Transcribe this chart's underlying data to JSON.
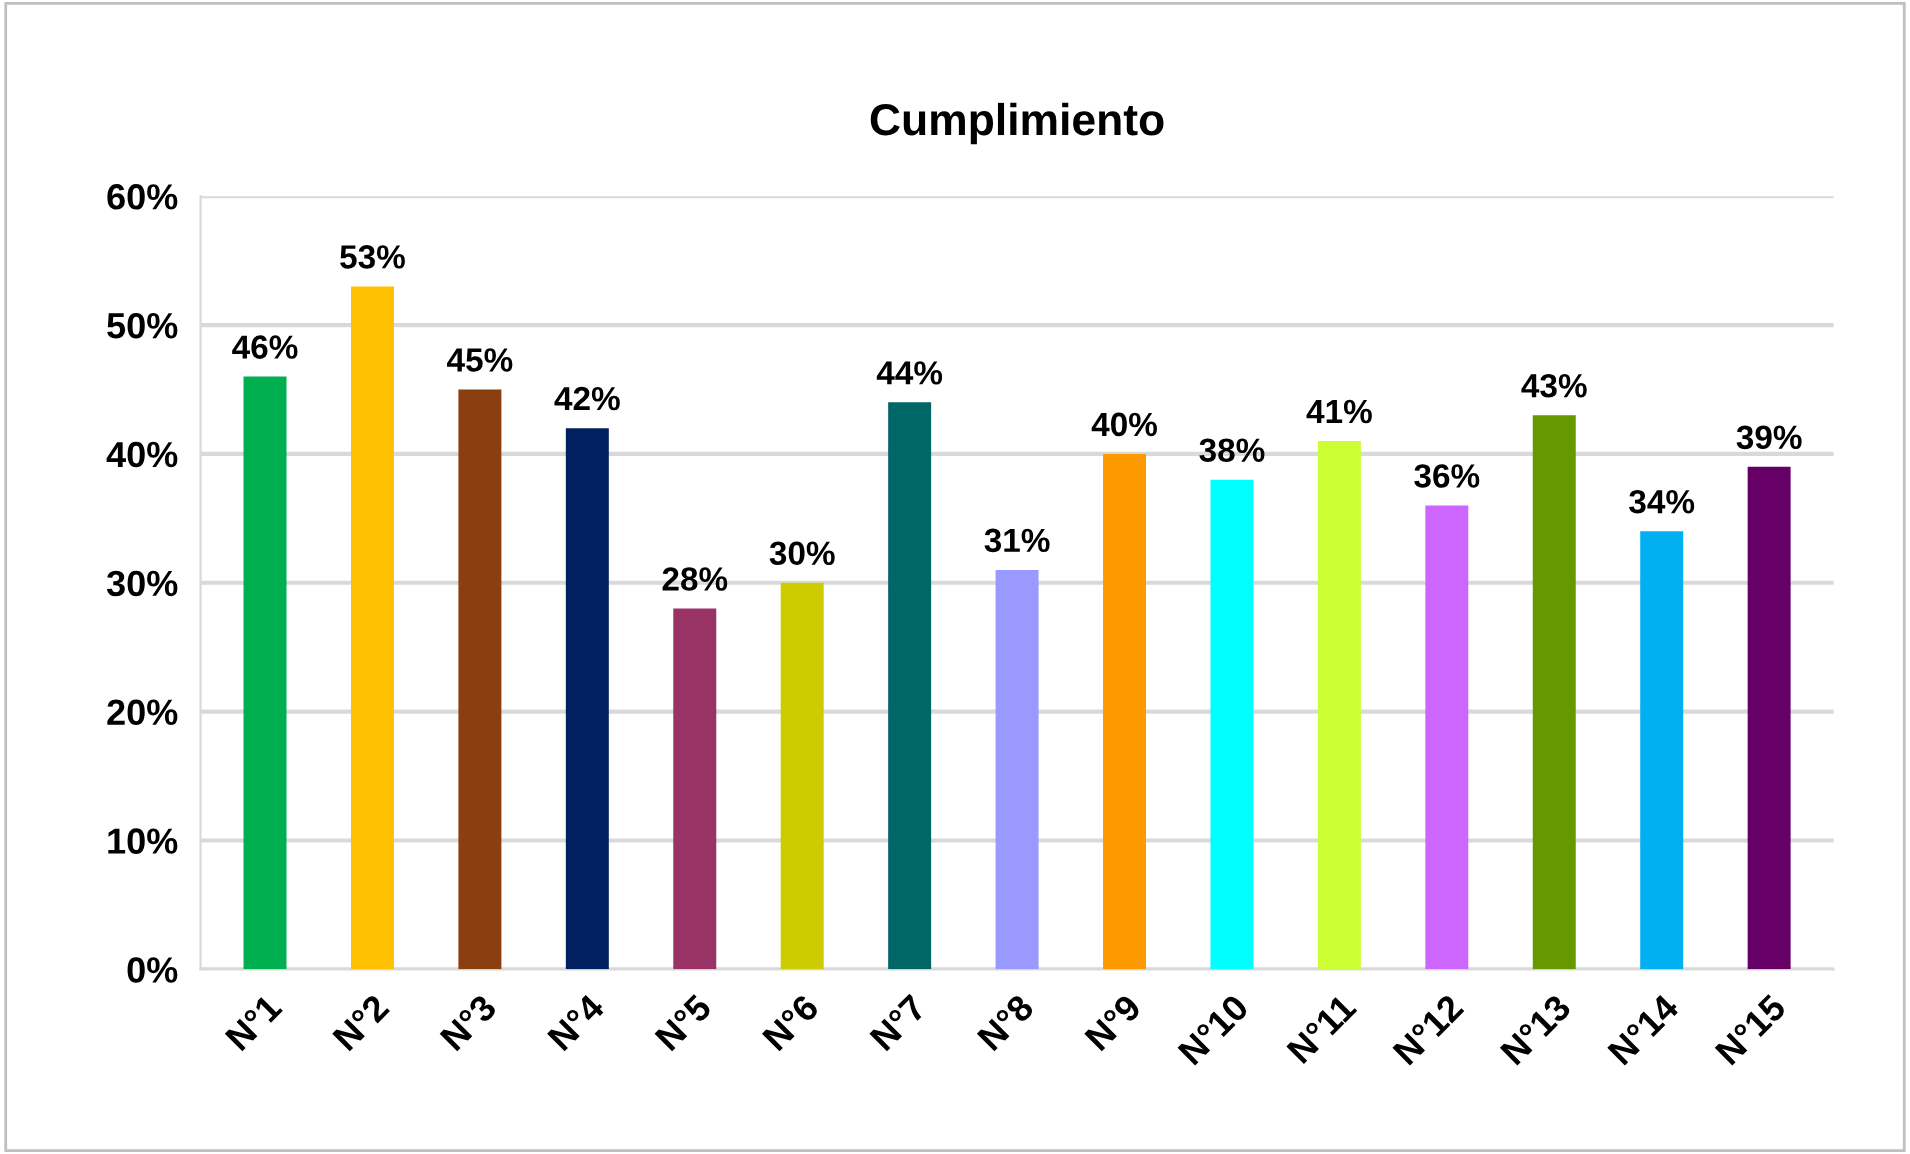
{
  "chart_data": {
    "type": "bar",
    "title": "Cumplimiento",
    "categories": [
      "N°1",
      "N°2",
      "N°3",
      "N°4",
      "N°5",
      "N°6",
      "N°7",
      "N°8",
      "N°9",
      "N°10",
      "N°11",
      "N°12",
      "N°13",
      "N°14",
      "N°15"
    ],
    "values": [
      46,
      53,
      45,
      42,
      28,
      30,
      44,
      31,
      40,
      38,
      41,
      36,
      43,
      34,
      39
    ],
    "value_labels": [
      "46%",
      "53%",
      "45%",
      "42%",
      "28%",
      "30%",
      "44%",
      "31%",
      "40%",
      "38%",
      "41%",
      "36%",
      "43%",
      "34%",
      "39%"
    ],
    "colors": [
      "#00b050",
      "#ffc000",
      "#8b3e0f",
      "#002060",
      "#993366",
      "#cccc00",
      "#006666",
      "#9999ff",
      "#ff9900",
      "#00ffff",
      "#ccff33",
      "#cc66ff",
      "#669900",
      "#00b0f0",
      "#660066"
    ],
    "ylim": [
      0,
      60
    ],
    "yticks": [
      {
        "value": 0,
        "label": "0%"
      },
      {
        "value": 10,
        "label": "10%"
      },
      {
        "value": 20,
        "label": "20%"
      },
      {
        "value": 30,
        "label": "30%"
      },
      {
        "value": 40,
        "label": "40%"
      },
      {
        "value": 50,
        "label": "50%"
      },
      {
        "value": 60,
        "label": "60%"
      }
    ],
    "grid": "y",
    "legend": false
  }
}
